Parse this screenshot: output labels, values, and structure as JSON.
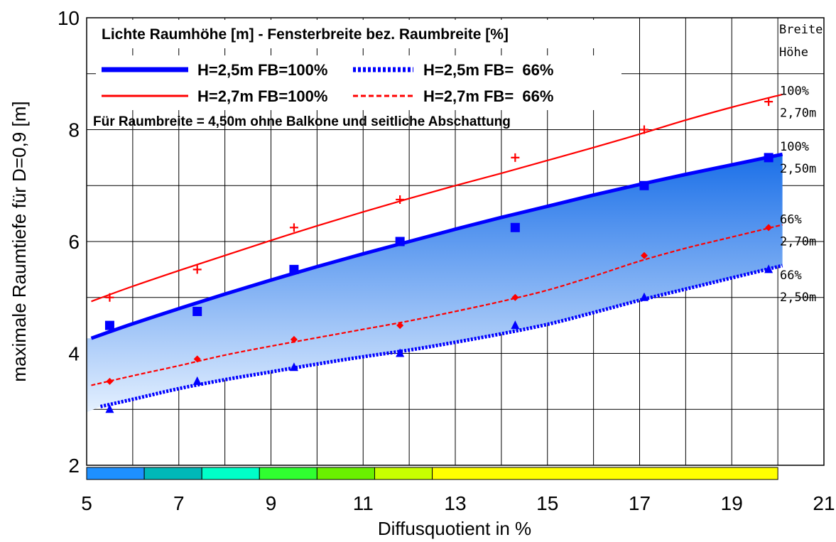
{
  "chart_data": {
    "type": "line",
    "title": "Lichte Raumhöhe [m] - Fensterbreite bez. Raumbreite [%]",
    "subtitle": "Für Raumbreite = 4,50m ohne Balkone und seitliche Abschattung",
    "xlabel": "Diffusquotient in %",
    "ylabel": "maximale Raumtiefe für D=0,9 [m]",
    "xlim": [
      5,
      21
    ],
    "ylim": [
      2,
      10
    ],
    "xticks": [
      "5",
      "7",
      "9",
      "11",
      "13",
      "15",
      "17",
      "19",
      "21"
    ],
    "yticks": [
      "2",
      "4",
      "6",
      "8",
      "10"
    ],
    "grid": true,
    "legend_position": "top-left",
    "series": [
      {
        "name": "H=2,5m FB=100%",
        "color": "#0000ff",
        "style": "solid-thick",
        "marker": "square",
        "points_x": [
          5.5,
          7.4,
          9.5,
          11.8,
          14.3,
          17.1,
          19.8
        ],
        "points_y": [
          4.5,
          4.75,
          5.5,
          6.0,
          6.25,
          7.0,
          7.5
        ],
        "curve_x": [
          5.1,
          6,
          7,
          8,
          9,
          10,
          11,
          12,
          13,
          14,
          15,
          16,
          17,
          18,
          19,
          20.1
        ],
        "curve_y": [
          4.27,
          4.53,
          4.8,
          5.06,
          5.31,
          5.55,
          5.78,
          6.0,
          6.22,
          6.43,
          6.63,
          6.83,
          7.02,
          7.2,
          7.37,
          7.56
        ]
      },
      {
        "name": "H=2,5m FB=  66%",
        "color": "#0000ff",
        "style": "dotted-thick",
        "marker": "triangle",
        "points_x": [
          5.5,
          7.4,
          9.5,
          11.8,
          14.3,
          17.1,
          19.8
        ],
        "points_y": [
          3.0,
          3.5,
          3.75,
          4.0,
          4.5,
          5.0,
          5.5
        ],
        "curve_x": [
          5.3,
          6,
          7,
          8,
          9,
          10,
          11,
          12,
          13,
          14,
          15,
          16,
          17,
          18,
          19,
          20.1
        ],
        "curve_y": [
          3.05,
          3.18,
          3.37,
          3.53,
          3.67,
          3.81,
          3.94,
          4.06,
          4.2,
          4.35,
          4.52,
          4.73,
          4.95,
          5.15,
          5.35,
          5.57
        ]
      },
      {
        "name": "H=2,7m FB=100%",
        "color": "#ff0000",
        "style": "solid-thin",
        "marker": "plus",
        "points_x": [
          5.5,
          7.4,
          9.5,
          11.8,
          14.3,
          17.1,
          19.8
        ],
        "points_y": [
          5.0,
          5.5,
          6.25,
          6.75,
          7.5,
          8.0,
          8.5
        ],
        "curve_x": [
          5.1,
          6,
          7,
          8,
          9,
          10,
          11,
          12,
          13,
          14,
          15,
          16,
          17,
          18,
          19,
          20.1
        ],
        "curve_y": [
          4.93,
          5.2,
          5.48,
          5.75,
          6.02,
          6.28,
          6.53,
          6.77,
          7.0,
          7.22,
          7.45,
          7.68,
          7.92,
          8.17,
          8.4,
          8.63
        ]
      },
      {
        "name": "H=2,7m FB=  66%",
        "color": "#ff0000",
        "style": "dashed-thin",
        "marker": "diamond",
        "points_x": [
          5.5,
          7.4,
          9.5,
          11.8,
          14.3,
          17.1,
          19.8
        ],
        "points_y": [
          3.5,
          3.9,
          4.25,
          4.5,
          5.0,
          5.75,
          6.25
        ],
        "curve_x": [
          5.1,
          6,
          7,
          8,
          9,
          10,
          11,
          12,
          13,
          14,
          15,
          16,
          17,
          18,
          19,
          20.1
        ],
        "curve_y": [
          3.43,
          3.6,
          3.78,
          3.97,
          4.13,
          4.28,
          4.43,
          4.58,
          4.75,
          4.93,
          5.13,
          5.38,
          5.65,
          5.88,
          6.08,
          6.3
        ]
      }
    ],
    "shaded_region": {
      "between": [
        "H=2,5m FB=100%",
        "H=2,5m FB=  66%"
      ],
      "color_top": "#1a6fe8",
      "color_bottom": "#e4f0ff"
    },
    "color_bar": [
      {
        "from": 5,
        "to": 6.25,
        "color": "#1e90ff"
      },
      {
        "from": 6.25,
        "to": 7.5,
        "color": "#00b8b8"
      },
      {
        "from": 7.5,
        "to": 8.75,
        "color": "#00ffc8"
      },
      {
        "from": 8.75,
        "to": 10,
        "color": "#30ff30"
      },
      {
        "from": 10,
        "to": 11.25,
        "color": "#6af000"
      },
      {
        "from": 11.25,
        "to": 12.5,
        "color": "#c8ff00"
      },
      {
        "from": 12.5,
        "to": 20,
        "color": "#ffff00"
      }
    ],
    "side_header": [
      "Breite",
      "Höhe"
    ],
    "side_labels": [
      {
        "y": 8.6,
        "lines": [
          "100%",
          "2,70m"
        ]
      },
      {
        "y": 7.6,
        "lines": [
          "100%",
          "2,50m"
        ]
      },
      {
        "y": 6.3,
        "lines": [
          "66%",
          "2,70m"
        ]
      },
      {
        "y": 5.3,
        "lines": [
          "66%",
          "2,50m"
        ]
      }
    ]
  }
}
